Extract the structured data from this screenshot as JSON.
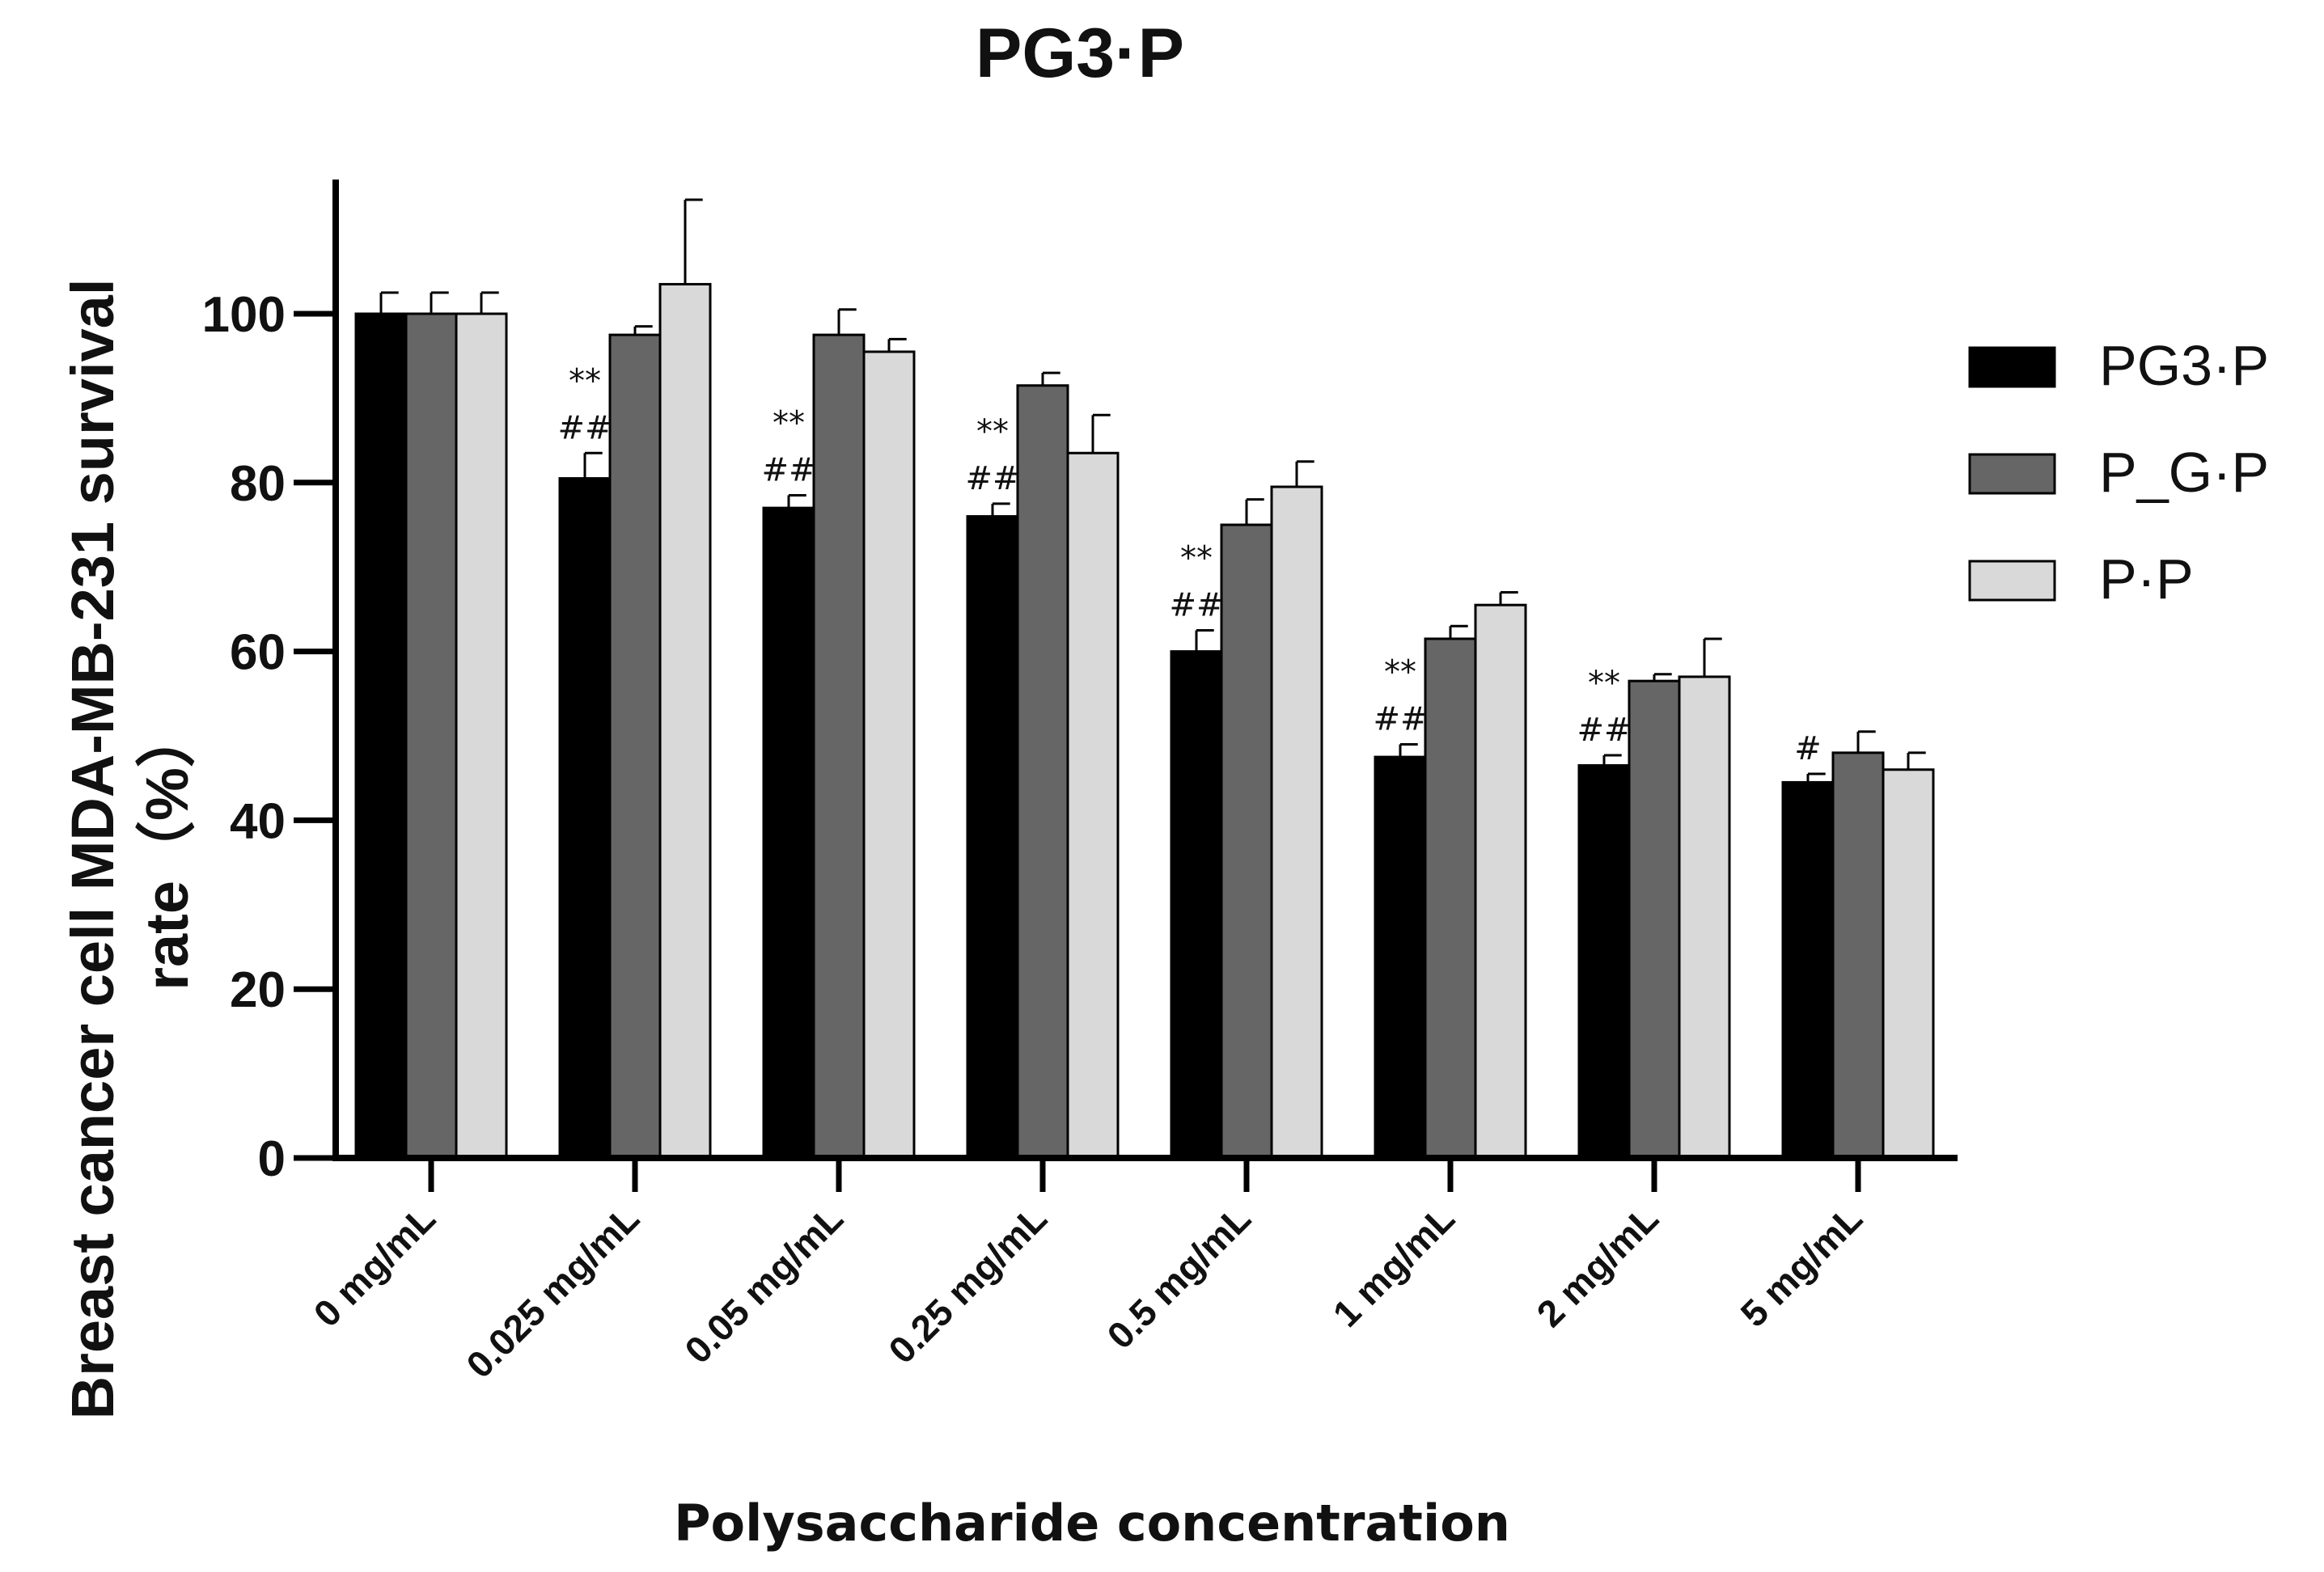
{
  "chart_data": {
    "type": "bar",
    "title": "PG3·P",
    "xlabel": "Polysaccharide concentration",
    "ylabel_line1": "Breast cancer cell MDA-MB-231 survival",
    "ylabel_line2": "rate（%）",
    "ylim": [
      0,
      115
    ],
    "yticks": [
      0,
      20,
      40,
      60,
      80,
      100
    ],
    "categories": [
      "0 mg/mL",
      "0.025 mg/mL",
      "0.05 mg/mL",
      "0.25 mg/mL",
      "0.5 mg/mL",
      "1 mg/mL",
      "2 mg/mL",
      "5 mg/mL"
    ],
    "series": [
      {
        "name": "PG3·P",
        "color": "#000000",
        "values": [
          100,
          80.5,
          77,
          76,
          60,
          47.5,
          46.5,
          44.5
        ],
        "errors": [
          2.5,
          3,
          1.5,
          1.5,
          2.5,
          1.5,
          1.2,
          1
        ]
      },
      {
        "name": "P_G·P",
        "color": "#666666",
        "values": [
          100,
          97.5,
          97.5,
          91.5,
          75,
          61.5,
          56.5,
          48
        ],
        "errors": [
          2.5,
          1,
          3,
          1.5,
          3,
          1.5,
          0.8,
          2.5
        ]
      },
      {
        "name": "P·P",
        "color": "#d9d9d9",
        "values": [
          100,
          103.5,
          95.5,
          83.5,
          79.5,
          65.5,
          57,
          46
        ],
        "errors": [
          2.5,
          10,
          1.5,
          4.5,
          3,
          1.5,
          4.5,
          2
        ]
      }
    ],
    "annotations": [
      {
        "category": "0.025 mg/mL",
        "lines": [
          "**",
          "##"
        ]
      },
      {
        "category": "0.05 mg/mL",
        "lines": [
          "**",
          "##"
        ]
      },
      {
        "category": "0.25 mg/mL",
        "lines": [
          "**",
          "##"
        ]
      },
      {
        "category": "0.5 mg/mL",
        "lines": [
          "**",
          "##"
        ]
      },
      {
        "category": "1 mg/mL",
        "lines": [
          "**",
          "##"
        ]
      },
      {
        "category": "2 mg/mL",
        "lines": [
          "**",
          "##"
        ]
      },
      {
        "category": "5 mg/mL",
        "lines": [
          "#"
        ]
      }
    ],
    "legend_position": "right"
  }
}
